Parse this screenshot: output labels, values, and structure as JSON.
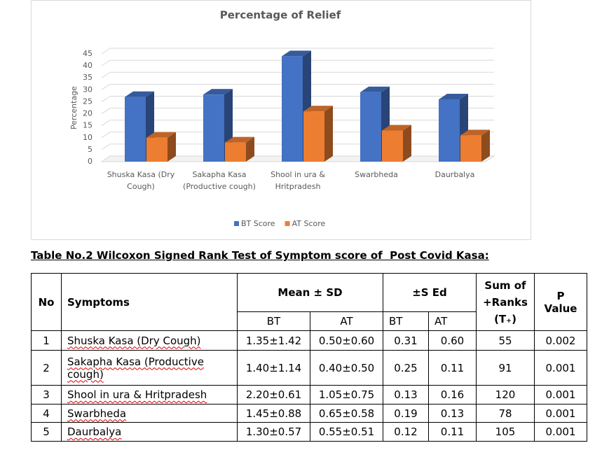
{
  "chart_data": {
    "type": "bar3d",
    "title": "Percentage of Relief",
    "y_label": "Percentage",
    "categories": [
      "Shuska Kasa (Dry Cough)",
      "Sakapha Kasa (Productive cough)",
      "Shool in ura & Hritpradesh",
      "Swarbheda",
      "Daurbalya"
    ],
    "series": [
      {
        "name": "BT Score",
        "color": "#4472c4",
        "values": [
          27,
          28,
          44,
          29,
          26
        ]
      },
      {
        "name": "AT Score",
        "color": "#ed7d31",
        "values": [
          10,
          8,
          21,
          13,
          11
        ]
      }
    ],
    "ylim": [
      0,
      45
    ],
    "yticks": [
      0,
      5,
      10,
      15,
      20,
      25,
      30,
      35,
      40,
      45
    ],
    "grid": true,
    "legend": "bottom"
  },
  "table_title": "Table No.2 Wilcoxon Signed Rank Test of Symptom score of  Post Covid Kasa:",
  "table": {
    "header": [
      "No",
      "Symptoms",
      "Mean ± SD",
      "±S Ed",
      "Sum of +Ranks (T₊)",
      "P Value"
    ],
    "subheader": [
      "BT",
      "AT",
      "BT",
      "AT"
    ],
    "rows": [
      [
        "1",
        "Shuska Kasa (Dry Cough)",
        "1.35±1.42",
        "0.50±0.60",
        "0.31",
        "0.60",
        "55",
        "0.002"
      ],
      [
        "2",
        "Sakapha Kasa (Productive cough)",
        "1.40±1.14",
        "0.40±0.50",
        "0.25",
        "0.11",
        "91",
        "0.001"
      ],
      [
        "3",
        "Shool in ura & Hritpradesh",
        "2.20±0.61",
        "1.05±0.75",
        "0.13",
        "0.16",
        "120",
        "0.001"
      ],
      [
        "4",
        "Swarbheda",
        "1.45±0.88",
        "0.65±0.58",
        "0.19",
        "0.13",
        "78",
        "0.001"
      ],
      [
        "5",
        "Daurbalya",
        "1.30±0.57",
        "0.55±0.51",
        "0.12",
        "0.11",
        "105",
        "0.001"
      ]
    ]
  }
}
